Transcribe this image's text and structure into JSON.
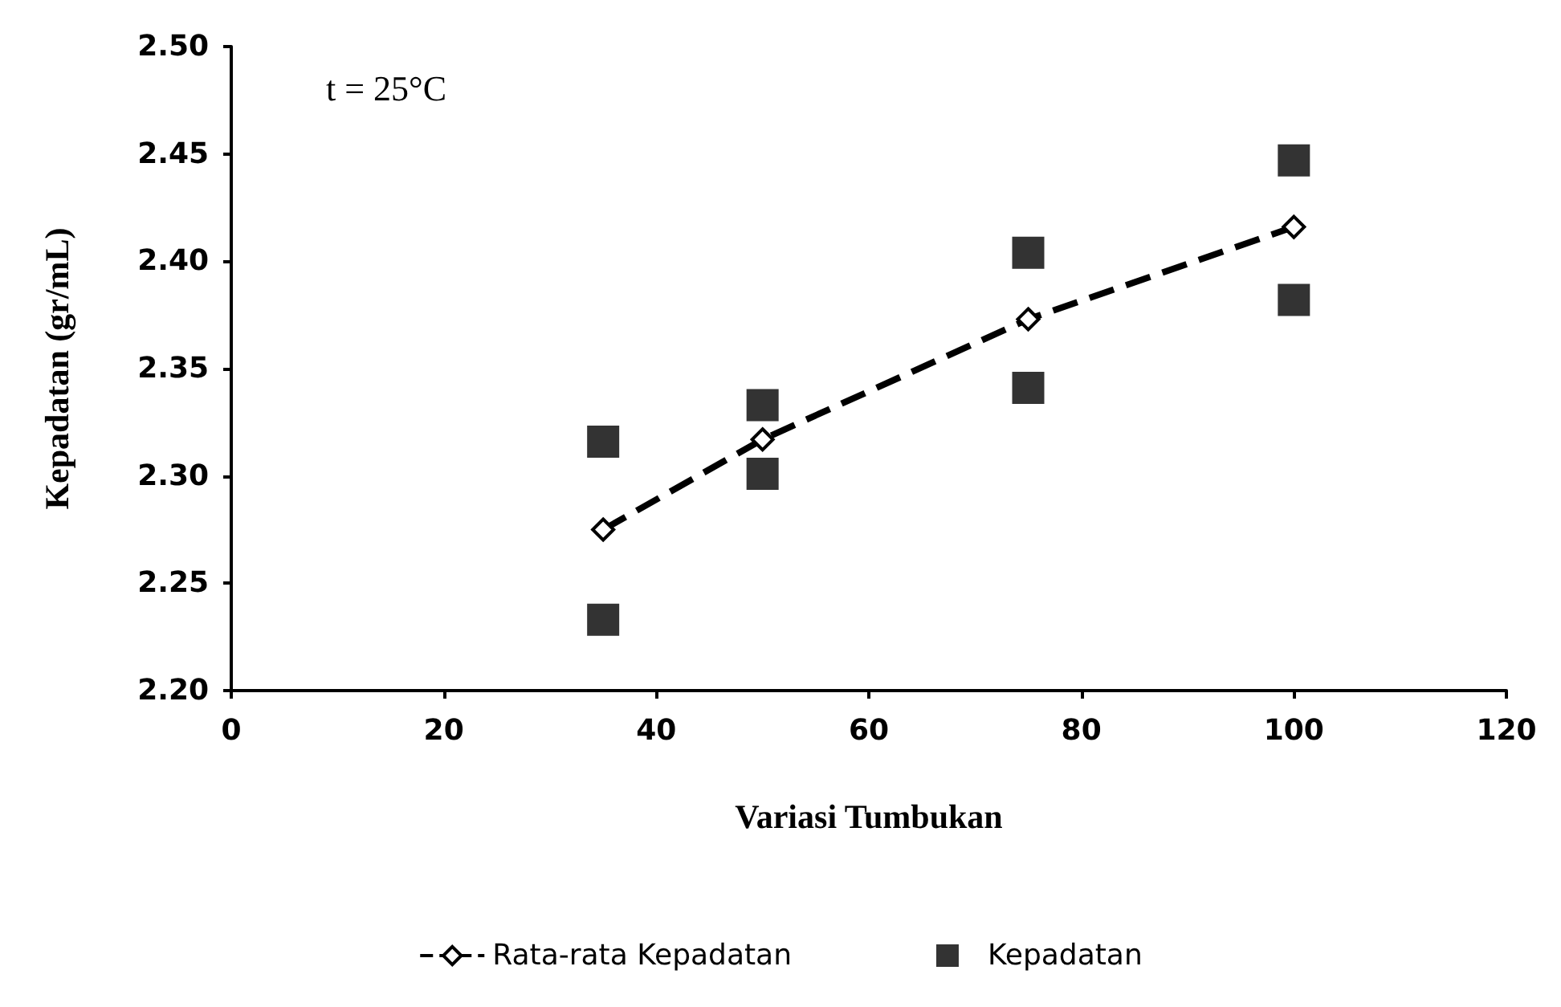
{
  "chart_data": {
    "type": "scatter",
    "xlabel": "Variasi Tumbukan",
    "ylabel": "Kepadatan (gr/mL)",
    "annotations": [
      "t = 25°C"
    ],
    "xlim": [
      0,
      120
    ],
    "xticks": [
      0,
      20,
      40,
      60,
      80,
      100,
      120
    ],
    "ylim": [
      2.2,
      2.5
    ],
    "yticks": [
      {
        "value": 2.2,
        "label": "2.20"
      },
      {
        "value": 2.25,
        "label": "2.25"
      },
      {
        "value": 2.3,
        "label": "2.30"
      },
      {
        "value": 2.35,
        "label": "2.35"
      },
      {
        "value": 2.4,
        "label": "2.40"
      },
      {
        "value": 2.45,
        "label": "2.45"
      },
      {
        "value": 2.5,
        "label": "2.50"
      }
    ],
    "grid": false,
    "legend": "bottom",
    "series": [
      {
        "name": "Rata-rata Kepadatan",
        "type": "line",
        "color": "#000000",
        "marker": "diamond",
        "line_style": "dashed",
        "x": [
          35,
          50,
          75,
          100
        ],
        "values": [
          2.275,
          2.317,
          2.373,
          2.416
        ]
      },
      {
        "name": "Kepadatan",
        "type": "scatter",
        "color": "#000000",
        "marker": "square",
        "x": [
          35,
          35,
          50,
          50,
          75,
          75,
          100,
          100
        ],
        "values": [
          2.316,
          2.233,
          2.333,
          2.301,
          2.404,
          2.341,
          2.447,
          2.382
        ]
      }
    ]
  }
}
